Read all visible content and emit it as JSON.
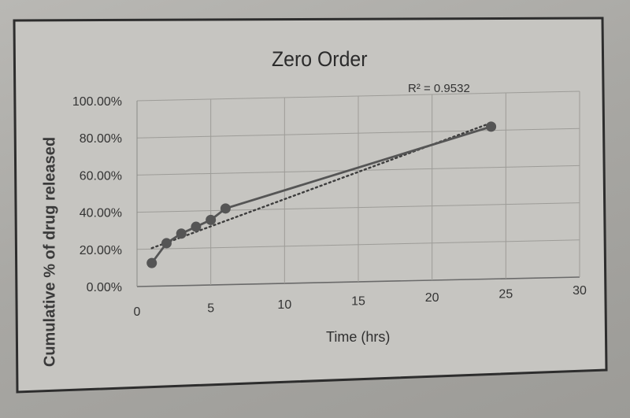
{
  "chart_data": {
    "type": "scatter",
    "title": "Zero Order",
    "xlabel": "Time (hrs)",
    "ylabel": "Cumulative % of drug released",
    "xlim": [
      0,
      30
    ],
    "ylim": [
      0,
      100
    ],
    "x_ticks": [
      "0",
      "5",
      "10",
      "15",
      "20",
      "25",
      "30"
    ],
    "y_ticks": [
      "0.00%",
      "20.00%",
      "40.00%",
      "60.00%",
      "80.00%",
      "100.00%"
    ],
    "grid": true,
    "series": [
      {
        "points": [
          {
            "x": 1,
            "y": 12.5
          },
          {
            "x": 2,
            "y": 23
          },
          {
            "x": 3,
            "y": 28
          },
          {
            "x": 4,
            "y": 31.5
          },
          {
            "x": 5,
            "y": 35
          },
          {
            "x": 6,
            "y": 41
          },
          {
            "x": 24,
            "y": 82
          }
        ],
        "color": "#555555"
      }
    ],
    "trendline": {
      "kind": "linear",
      "style": "dotted",
      "from": {
        "x": 1,
        "y": 20.5
      },
      "to": {
        "x": 24,
        "y": 84
      },
      "r2_label": "R² = 0.9532"
    }
  }
}
